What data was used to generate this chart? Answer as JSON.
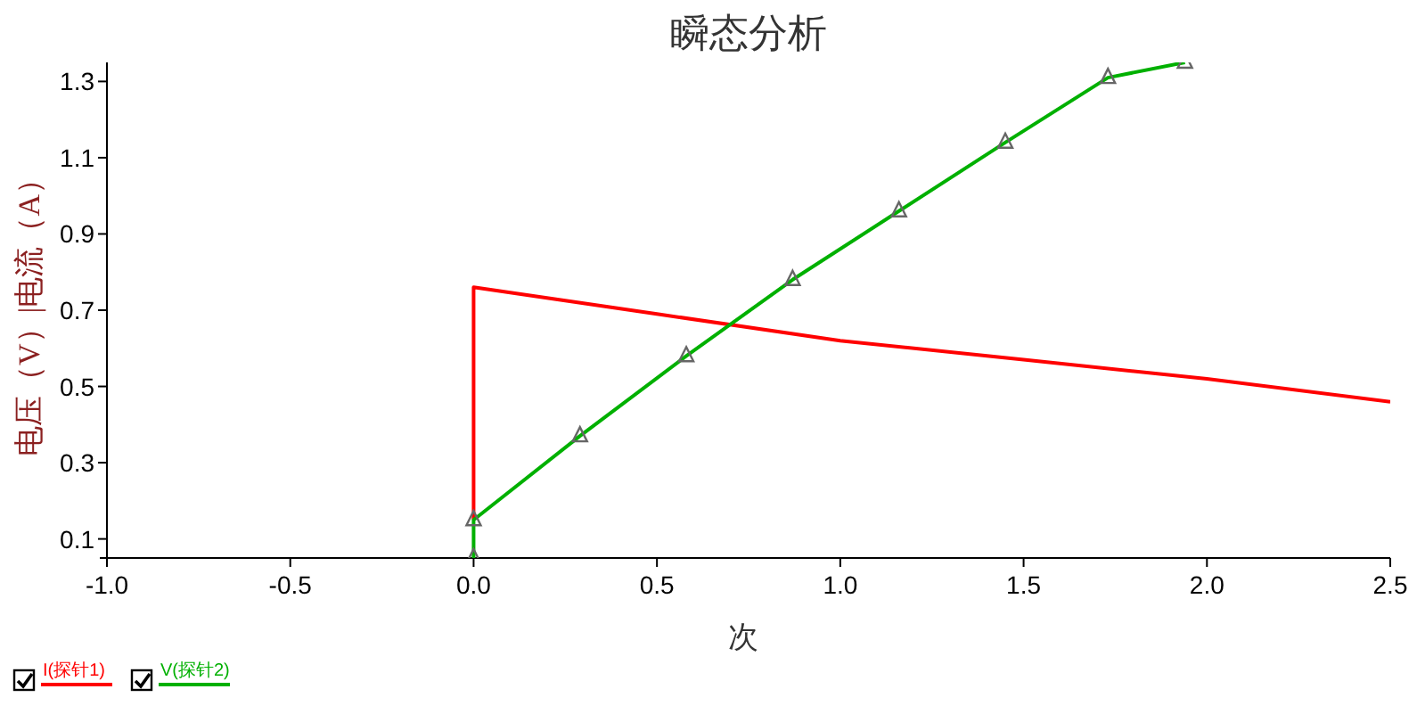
{
  "chart_data": {
    "type": "line",
    "title": "瞬态分析",
    "xlabel": "次",
    "ylabel": "电压（V）|电流（A）",
    "xlim": [
      -1.0,
      2.5
    ],
    "ylim": [
      0.05,
      1.35
    ],
    "xticks": [
      {
        "value": -1.0,
        "label": "-1.0"
      },
      -0.5,
      {
        "value": 0.0,
        "label": "0.0"
      },
      0.5,
      {
        "value": 1.0,
        "label": "1.0"
      },
      1.5,
      {
        "value": 2.0,
        "label": "2.0"
      },
      2.5
    ],
    "yticks": [
      0.1,
      0.3,
      0.5,
      0.7,
      0.9,
      1.1,
      1.3
    ],
    "grid": false,
    "legend": "bottom left",
    "series": [
      {
        "name": "I(探针1)",
        "color": "#ff0000",
        "marker": "none",
        "x": [
          0,
          0,
          0.5,
          1.0,
          1.5,
          2.0,
          2.5
        ],
        "values": [
          0.15,
          0.76,
          0.69,
          0.62,
          0.57,
          0.52,
          0.46
        ]
      },
      {
        "name": "V(探针2)",
        "color": "#00b000",
        "marker": "triangle",
        "x": [
          0,
          0,
          0.29,
          0.58,
          0.87,
          1.16,
          1.45,
          1.73,
          1.94
        ],
        "values": [
          0.05,
          0.15,
          0.37,
          0.58,
          0.78,
          0.96,
          1.14,
          1.31,
          1.35
        ]
      }
    ]
  }
}
